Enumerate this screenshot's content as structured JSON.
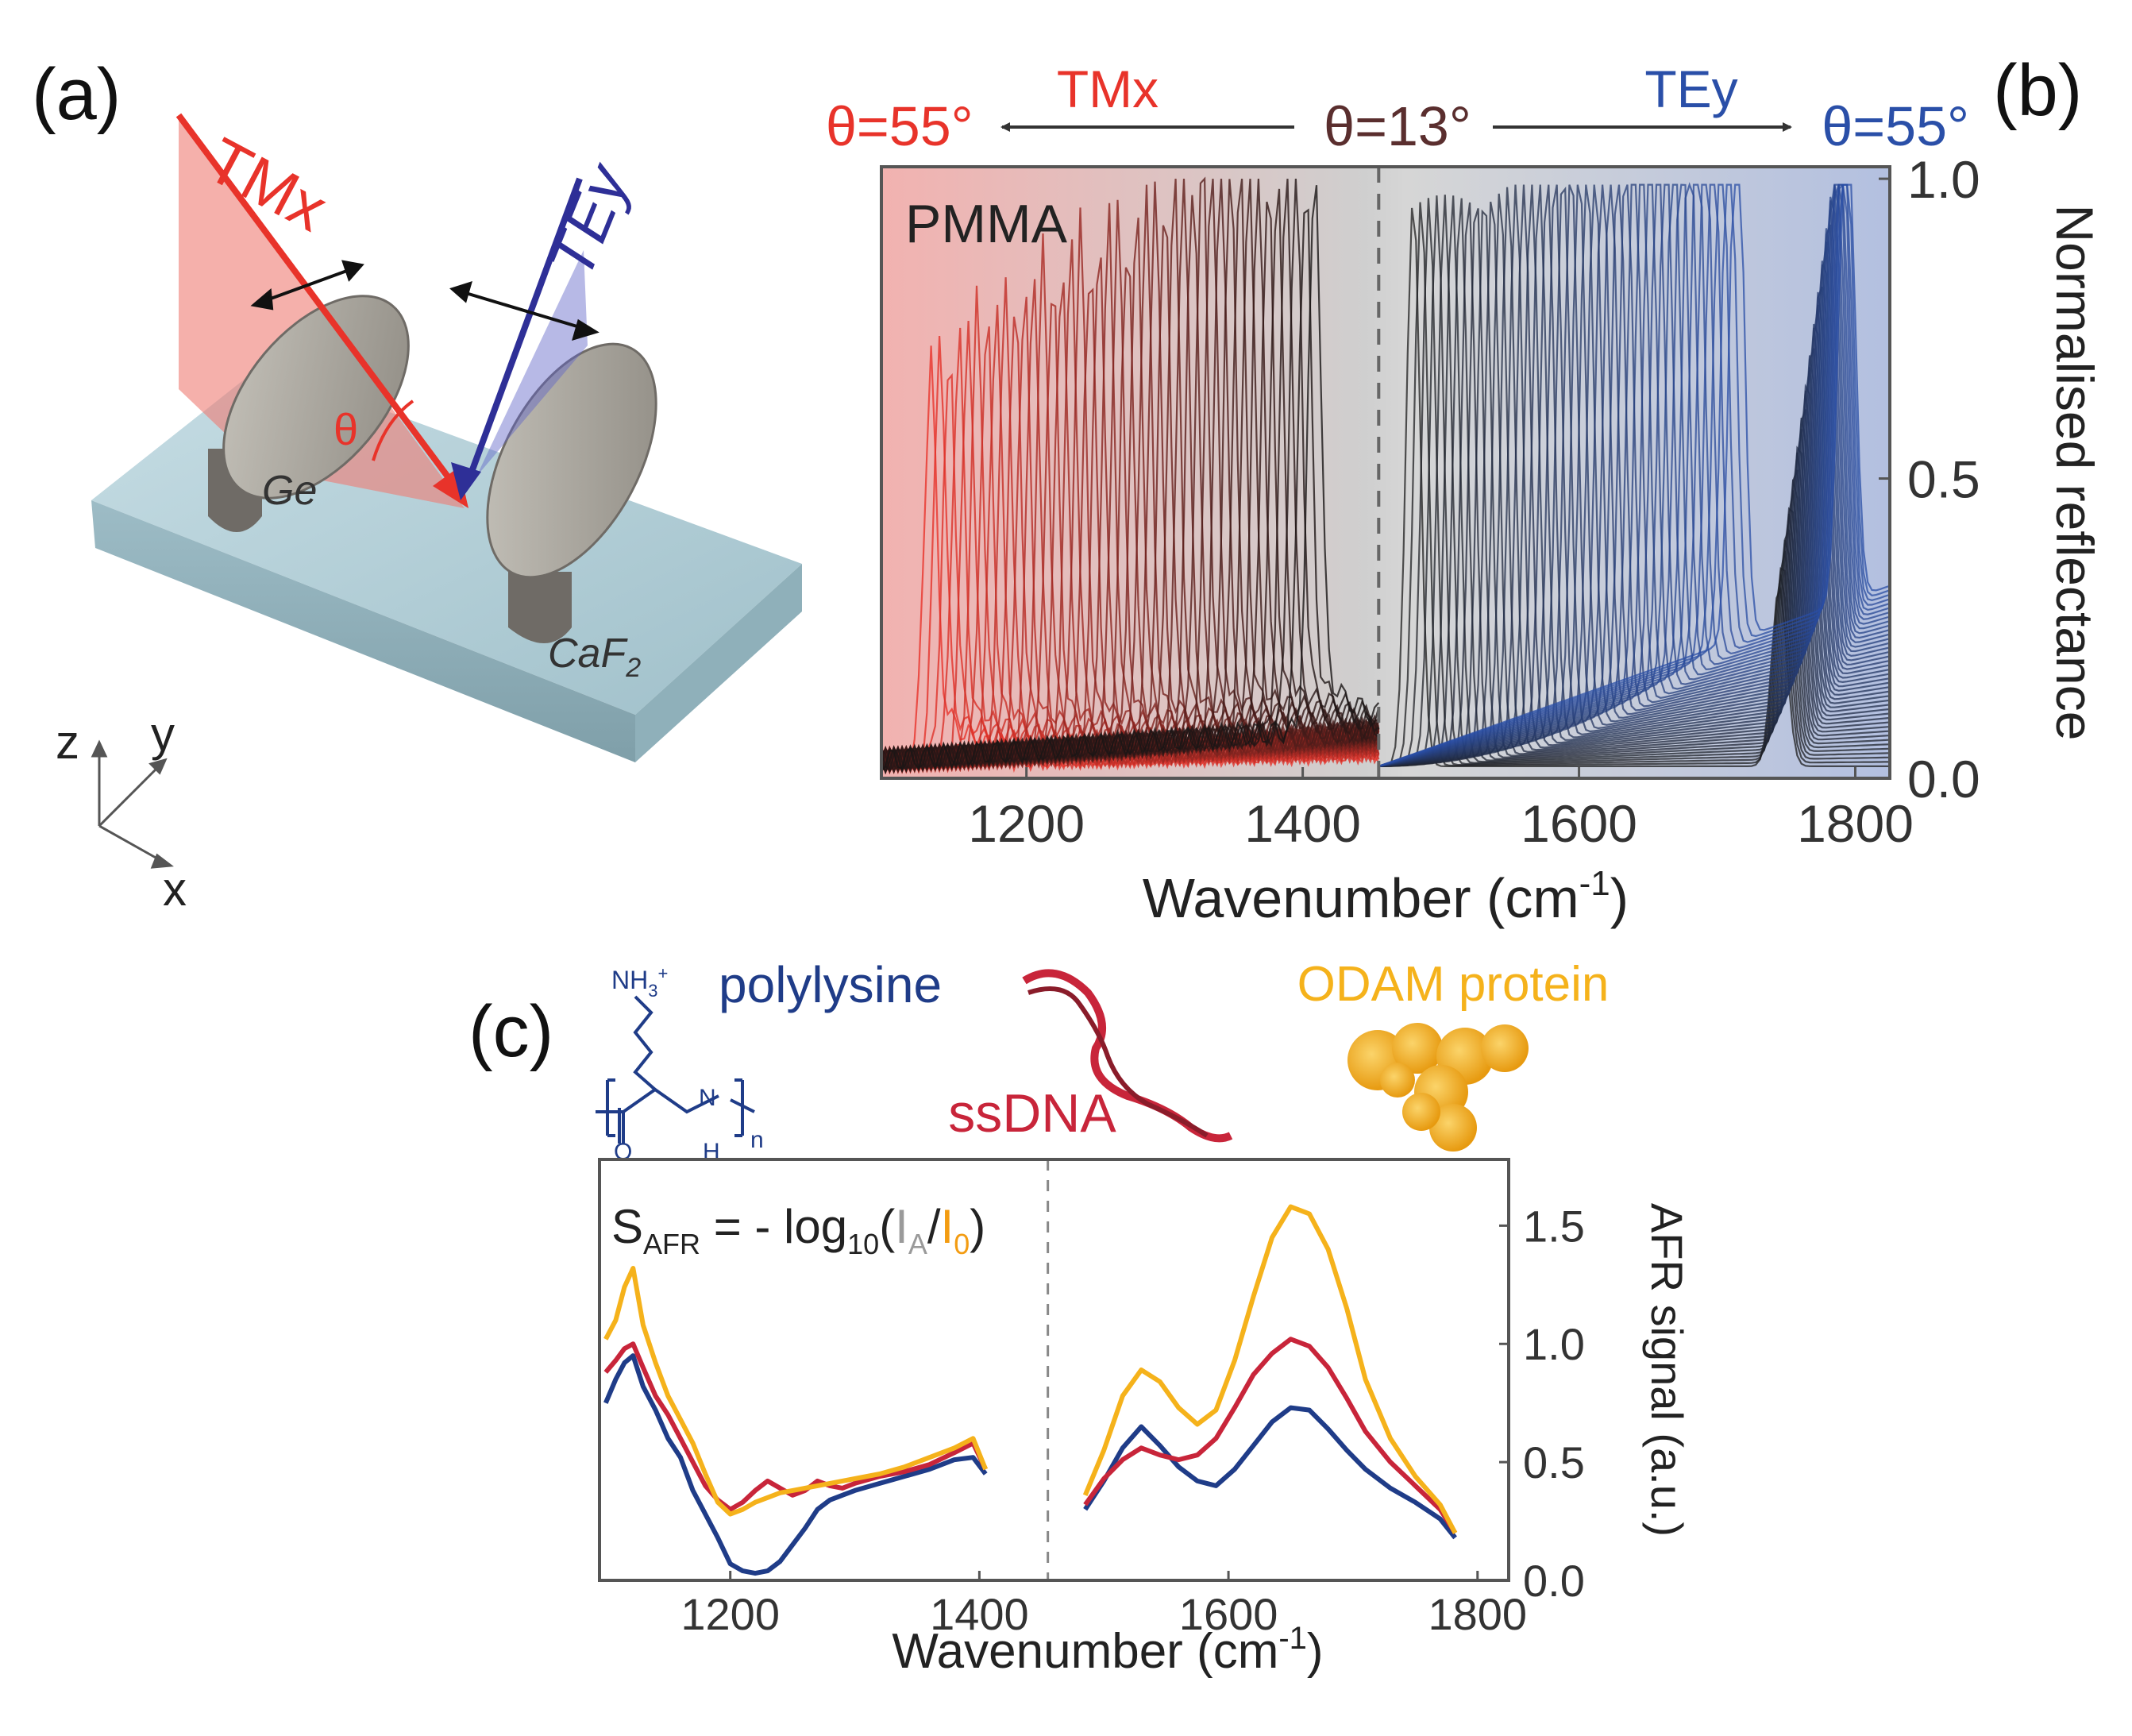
{
  "panel_labels": {
    "a": "(a)",
    "b": "(b)",
    "c": "(c)"
  },
  "panel_a": {
    "beam_tm_label": "TMx",
    "beam_te_label": "TEy",
    "angle_symbol": "θ",
    "ge_label": "Ge",
    "caf2_label": "CaF",
    "caf2_sub": "2",
    "axes": {
      "z": "z",
      "y": "y",
      "x": "x"
    },
    "colors": {
      "tm": "#e8332a",
      "te": "#2e2f97",
      "substrate": "#a9c8d2",
      "disk": "#9e9a92"
    }
  },
  "panel_b": {
    "header": {
      "left_angle": "θ=55°",
      "tm_label": "TMx",
      "center_angle": "θ=13°",
      "te_label": "TEy",
      "right_angle": "θ=55°"
    },
    "colors": {
      "tm": "#e8332a",
      "te": "#2a4fa8",
      "center": "#5a2e2e",
      "arrow": "#333333"
    },
    "chart_data": {
      "type": "line",
      "title": "",
      "inset_label": "PMMA",
      "xlabel": "Wavenumber (cm",
      "xlabel_sup": "-1",
      "xlabel_close": ")",
      "ylabel": "Normalised reflectance",
      "xlim": [
        1095,
        1825
      ],
      "ylim": [
        0.0,
        1.02
      ],
      "xticks": [
        "1200",
        "1400",
        "1600",
        "1800"
      ],
      "xtick_values": [
        1200,
        1400,
        1600,
        1800
      ],
      "yticks": [
        "0.0",
        "0.5",
        "1.0"
      ],
      "ytick_values": [
        0.0,
        0.5,
        1.0
      ],
      "divider_x": 1455,
      "series_count": 84,
      "tm_bands": [
        {
          "band_start": 1128,
          "band_end": 1415,
          "envelope_peaks": [
            [
              1130,
              0.62
            ],
            [
              1190,
              0.75
            ],
            [
              1230,
              0.81
            ],
            [
              1290,
              0.88
            ],
            [
              1330,
              0.99
            ],
            [
              1370,
              0.93
            ],
            [
              1400,
              0.93
            ]
          ]
        }
      ],
      "te_bands": [
        {
          "band_start": 1480,
          "band_end": 1720,
          "peak": 0.98
        },
        {
          "band_start": 1745,
          "band_end": 1795,
          "peak": 0.98
        }
      ]
    }
  },
  "panel_c": {
    "molecules": {
      "polylysine": "polylysine",
      "ssdna": "ssDNA",
      "odam": "ODAM protein",
      "nh3": "NH",
      "nh3_sub": "3",
      "nh3_sup": "+",
      "struct_o": "O",
      "struct_n": "N",
      "struct_h": "H",
      "struct_n_sub": "n"
    },
    "formula": {
      "s": "S",
      "s_sub": "AFR",
      "eq": " = - log",
      "log_sub": "10",
      "open": "(",
      "ia": "I",
      "ia_sub": "A",
      "slash": "/",
      "i0": "I",
      "i0_sub": "0",
      "close": ")"
    },
    "colors": {
      "polylysine": "#1f3c88",
      "ssdna": "#c8253a",
      "odam": "#f5b21b",
      "ia": "#9a9a9a",
      "i0": "#f39c12"
    },
    "chart_data": {
      "type": "line",
      "xlabel": "Wavenumber (cm",
      "xlabel_sup": "-1",
      "xlabel_close": ")",
      "ylabel": "AFR signal (a.u.)",
      "xlim": [
        1095,
        1825
      ],
      "ylim": [
        0.0,
        1.78
      ],
      "xticks": [
        "1200",
        "1400",
        "1600",
        "1800"
      ],
      "xtick_values": [
        1200,
        1400,
        1600,
        1800
      ],
      "yticks": [
        "0.0",
        "0.5",
        "1.0",
        "1.5"
      ],
      "ytick_values": [
        0.0,
        0.5,
        1.0,
        1.5
      ],
      "divider_x": 1455,
      "series": [
        {
          "name": "polylysine",
          "color": "#1f3c88",
          "segments": [
            [
              [
                1100,
                0.75
              ],
              [
                1108,
                0.85
              ],
              [
                1115,
                0.92
              ],
              [
                1122,
                0.95
              ],
              [
                1130,
                0.82
              ],
              [
                1140,
                0.72
              ],
              [
                1150,
                0.6
              ],
              [
                1160,
                0.52
              ],
              [
                1170,
                0.38
              ],
              [
                1180,
                0.28
              ],
              [
                1190,
                0.18
              ],
              [
                1200,
                0.07
              ],
              [
                1210,
                0.04
              ],
              [
                1220,
                0.03
              ],
              [
                1230,
                0.04
              ],
              [
                1240,
                0.08
              ],
              [
                1250,
                0.15
              ],
              [
                1260,
                0.22
              ],
              [
                1270,
                0.3
              ],
              [
                1280,
                0.34
              ],
              [
                1290,
                0.36
              ],
              [
                1300,
                0.38
              ],
              [
                1320,
                0.41
              ],
              [
                1340,
                0.44
              ],
              [
                1360,
                0.47
              ],
              [
                1380,
                0.51
              ],
              [
                1395,
                0.52
              ],
              [
                1405,
                0.45
              ]
            ],
            [
              [
                1485,
                0.3
              ],
              [
                1500,
                0.42
              ],
              [
                1515,
                0.56
              ],
              [
                1530,
                0.65
              ],
              [
                1545,
                0.57
              ],
              [
                1560,
                0.48
              ],
              [
                1575,
                0.42
              ],
              [
                1590,
                0.4
              ],
              [
                1605,
                0.47
              ],
              [
                1620,
                0.57
              ],
              [
                1635,
                0.67
              ],
              [
                1650,
                0.73
              ],
              [
                1665,
                0.72
              ],
              [
                1680,
                0.64
              ],
              [
                1695,
                0.55
              ],
              [
                1710,
                0.47
              ],
              [
                1730,
                0.39
              ],
              [
                1750,
                0.33
              ],
              [
                1770,
                0.26
              ],
              [
                1782,
                0.18
              ]
            ]
          ]
        },
        {
          "name": "ssDNA",
          "color": "#c8253a",
          "segments": [
            [
              [
                1100,
                0.88
              ],
              [
                1108,
                0.93
              ],
              [
                1115,
                0.98
              ],
              [
                1122,
                1.0
              ],
              [
                1130,
                0.9
              ],
              [
                1140,
                0.78
              ],
              [
                1150,
                0.7
              ],
              [
                1160,
                0.6
              ],
              [
                1170,
                0.5
              ],
              [
                1180,
                0.4
              ],
              [
                1190,
                0.34
              ],
              [
                1200,
                0.3
              ],
              [
                1210,
                0.33
              ],
              [
                1220,
                0.38
              ],
              [
                1230,
                0.42
              ],
              [
                1240,
                0.39
              ],
              [
                1250,
                0.36
              ],
              [
                1260,
                0.38
              ],
              [
                1270,
                0.42
              ],
              [
                1280,
                0.4
              ],
              [
                1290,
                0.39
              ],
              [
                1300,
                0.41
              ],
              [
                1320,
                0.44
              ],
              [
                1340,
                0.46
              ],
              [
                1360,
                0.49
              ],
              [
                1380,
                0.54
              ],
              [
                1395,
                0.58
              ],
              [
                1405,
                0.47
              ]
            ],
            [
              [
                1485,
                0.32
              ],
              [
                1500,
                0.43
              ],
              [
                1515,
                0.51
              ],
              [
                1530,
                0.56
              ],
              [
                1545,
                0.53
              ],
              [
                1560,
                0.51
              ],
              [
                1575,
                0.53
              ],
              [
                1590,
                0.6
              ],
              [
                1605,
                0.73
              ],
              [
                1620,
                0.87
              ],
              [
                1635,
                0.96
              ],
              [
                1650,
                1.02
              ],
              [
                1665,
                0.99
              ],
              [
                1680,
                0.9
              ],
              [
                1695,
                0.77
              ],
              [
                1710,
                0.63
              ],
              [
                1730,
                0.5
              ],
              [
                1750,
                0.4
              ],
              [
                1770,
                0.3
              ],
              [
                1782,
                0.2
              ]
            ]
          ]
        },
        {
          "name": "ODAM protein",
          "color": "#f5b21b",
          "segments": [
            [
              [
                1100,
                1.02
              ],
              [
                1108,
                1.1
              ],
              [
                1115,
                1.24
              ],
              [
                1122,
                1.32
              ],
              [
                1130,
                1.08
              ],
              [
                1140,
                0.92
              ],
              [
                1150,
                0.78
              ],
              [
                1160,
                0.68
              ],
              [
                1170,
                0.58
              ],
              [
                1180,
                0.45
              ],
              [
                1190,
                0.33
              ],
              [
                1200,
                0.28
              ],
              [
                1210,
                0.3
              ],
              [
                1220,
                0.33
              ],
              [
                1230,
                0.35
              ],
              [
                1240,
                0.37
              ],
              [
                1250,
                0.38
              ],
              [
                1260,
                0.39
              ],
              [
                1270,
                0.4
              ],
              [
                1280,
                0.41
              ],
              [
                1290,
                0.42
              ],
              [
                1300,
                0.43
              ],
              [
                1320,
                0.45
              ],
              [
                1340,
                0.48
              ],
              [
                1360,
                0.52
              ],
              [
                1380,
                0.56
              ],
              [
                1395,
                0.6
              ],
              [
                1405,
                0.47
              ]
            ],
            [
              [
                1485,
                0.36
              ],
              [
                1500,
                0.55
              ],
              [
                1515,
                0.78
              ],
              [
                1530,
                0.89
              ],
              [
                1545,
                0.84
              ],
              [
                1560,
                0.73
              ],
              [
                1575,
                0.66
              ],
              [
                1590,
                0.72
              ],
              [
                1605,
                0.93
              ],
              [
                1620,
                1.2
              ],
              [
                1635,
                1.45
              ],
              [
                1650,
                1.58
              ],
              [
                1665,
                1.55
              ],
              [
                1680,
                1.4
              ],
              [
                1695,
                1.15
              ],
              [
                1710,
                0.85
              ],
              [
                1730,
                0.6
              ],
              [
                1750,
                0.44
              ],
              [
                1770,
                0.32
              ],
              [
                1782,
                0.2
              ]
            ]
          ]
        }
      ]
    }
  }
}
